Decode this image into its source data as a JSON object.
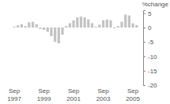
{
  "chart_data": {
    "type": "bar",
    "y_label": "%change",
    "categories": [
      "Sep 1997",
      null,
      null,
      null,
      null,
      null,
      null,
      null,
      "Sep 1999",
      null,
      null,
      null,
      null,
      null,
      null,
      null,
      "Sep 2001",
      null,
      null,
      null,
      null,
      null,
      null,
      null,
      "Sep 2003",
      null,
      null,
      null,
      null,
      null,
      null,
      null,
      "Sep 2005",
      null
    ],
    "values": [
      0.3,
      0.8,
      1.2,
      0.5,
      1.8,
      2.0,
      1.2,
      -0.5,
      -0.8,
      -1.5,
      -3.0,
      -5.0,
      -5.5,
      -2.5,
      0.5,
      1.5,
      2.5,
      3.5,
      3.8,
      3.5,
      2.8,
      1.5,
      0.3,
      1.0,
      2.5,
      2.8,
      2.5,
      -0.3,
      0.5,
      2.0,
      4.5,
      4.2,
      1.5,
      0.8
    ],
    "color": "#c4c4c4",
    "ylim": [
      -20,
      6
    ],
    "yticks": [
      5,
      0,
      -5,
      -10,
      -15,
      -20
    ],
    "grid": false
  }
}
